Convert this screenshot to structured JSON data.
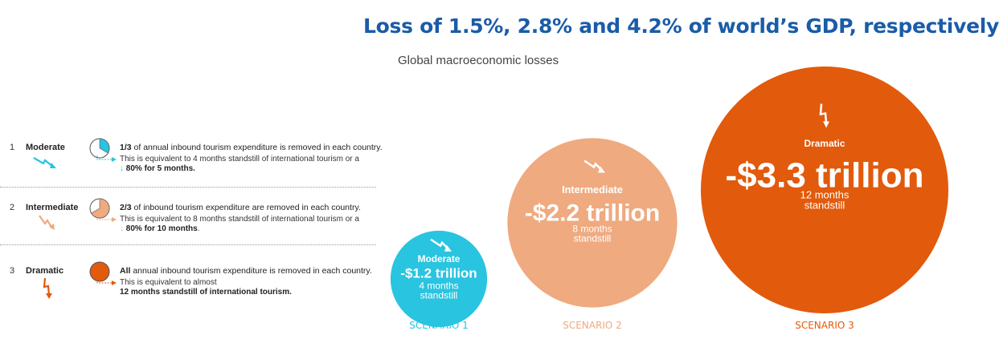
{
  "headline": "Loss of 1.5%, 2.8% and 4.2% of world’s GDP, respectively",
  "subtitle": "Global macroeconomic losses",
  "colors": {
    "moderate": "#29c4e0",
    "intermediate": "#efaa80",
    "dramatic": "#e25a0c",
    "headline": "#1a5ca8"
  },
  "scenarios": [
    {
      "number": "1",
      "name": "Moderate",
      "share": "1/3",
      "main_rest": " of annual inbound tourism expenditure is removed in each country.",
      "eq_line1": "This is equivalent to 4 months standstill of international tourism or a",
      "eq_line2_arrow": "↓",
      "eq_line2_bold": "80% for 5 months.",
      "eq_line2_rest": ""
    },
    {
      "number": "2",
      "name": "Intermediate",
      "share": "2/3",
      "main_rest": " of inbound tourism expenditure are removed in each country.",
      "eq_line1": "This is equivalent to 8 months standstill of international tourism or a",
      "eq_line2_arrow": "↓",
      "eq_line2_bold": "80% for 10 months",
      "eq_line2_rest": "."
    },
    {
      "number": "3",
      "name": "Dramatic",
      "share": "All",
      "main_rest": " annual inbound tourism expenditure is removed in each country.",
      "eq_line1": "This is equivalent to almost",
      "eq_line2_arrow": "",
      "eq_line2_bold": "12 months standstill of international tourism.",
      "eq_line2_rest": ""
    }
  ],
  "chart_data": {
    "type": "bubble",
    "title": "Global macroeconomic losses",
    "categories": [
      "SCENARIO 1",
      "SCENARIO 2",
      "SCENARIO 3"
    ],
    "series_labels": [
      "Moderate",
      "Intermediate",
      "Dramatic"
    ],
    "values": [
      -1.2,
      -2.2,
      -3.3
    ],
    "value_labels": [
      "-$1.2 trillion",
      "-$2.2 trillion",
      "-$3.3 trillion"
    ],
    "duration_labels": [
      [
        "4 months",
        "standstill"
      ],
      [
        "8 months",
        "standstill"
      ],
      [
        "12 months",
        "standstill"
      ]
    ],
    "pie_fractions": [
      0.3333,
      0.6667,
      1.0
    ],
    "unit": "trillion USD"
  }
}
